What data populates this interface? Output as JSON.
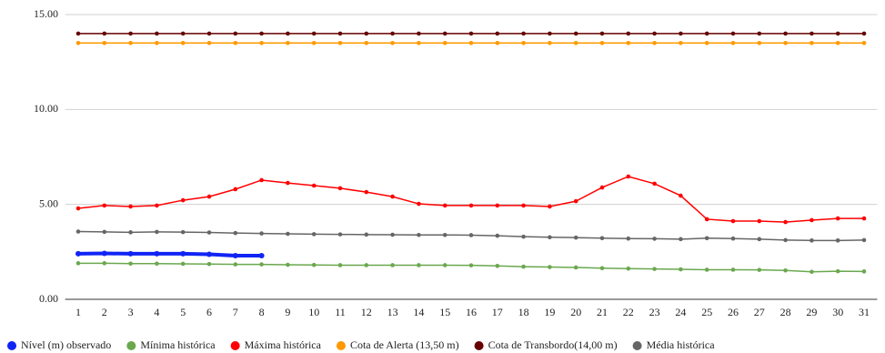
{
  "chart_data": {
    "type": "line",
    "categories": [
      "1",
      "2",
      "3",
      "4",
      "5",
      "6",
      "7",
      "8",
      "9",
      "10",
      "11",
      "12",
      "13",
      "14",
      "15",
      "16",
      "17",
      "18",
      "19",
      "20",
      "21",
      "22",
      "23",
      "24",
      "25",
      "26",
      "27",
      "28",
      "29",
      "30",
      "31"
    ],
    "series": [
      {
        "name": "Nível (m) observado",
        "color": "#1024f5",
        "values": [
          2.4,
          2.42,
          2.4,
          2.4,
          2.4,
          2.37,
          2.3,
          2.3,
          null,
          null,
          null,
          null,
          null,
          null,
          null,
          null,
          null,
          null,
          null,
          null,
          null,
          null,
          null,
          null,
          null,
          null,
          null,
          null,
          null,
          null,
          null
        ]
      },
      {
        "name": "Mínima histórica",
        "color": "#6aa84f",
        "values": [
          1.9,
          1.9,
          1.88,
          1.88,
          1.87,
          1.86,
          1.84,
          1.84,
          1.82,
          1.81,
          1.8,
          1.8,
          1.8,
          1.8,
          1.8,
          1.79,
          1.76,
          1.72,
          1.7,
          1.68,
          1.64,
          1.62,
          1.6,
          1.58,
          1.56,
          1.56,
          1.55,
          1.52,
          1.45,
          1.48,
          1.47
        ]
      },
      {
        "name": "Máxima histórica",
        "color": "#ff0000",
        "values": [
          4.79,
          4.94,
          4.89,
          4.94,
          5.22,
          5.41,
          5.8,
          6.28,
          6.13,
          5.99,
          5.85,
          5.65,
          5.41,
          5.03,
          4.94,
          4.94,
          4.94,
          4.94,
          4.89,
          5.17,
          5.89,
          6.47,
          6.09,
          5.46,
          4.22,
          4.12,
          4.12,
          4.07,
          4.17,
          4.26,
          4.26
        ]
      },
      {
        "name": "Cota de Alerta (13,50 m)",
        "color": "#ff9900",
        "values": [
          13.5,
          13.5,
          13.5,
          13.5,
          13.5,
          13.5,
          13.5,
          13.5,
          13.5,
          13.5,
          13.5,
          13.5,
          13.5,
          13.5,
          13.5,
          13.5,
          13.5,
          13.5,
          13.5,
          13.5,
          13.5,
          13.5,
          13.5,
          13.5,
          13.5,
          13.5,
          13.5,
          13.5,
          13.5,
          13.5,
          13.5
        ]
      },
      {
        "name": "Cota de Transbordo(14,00 m)",
        "color": "#660000",
        "values": [
          14,
          14,
          14,
          14,
          14,
          14,
          14,
          14,
          14,
          14,
          14,
          14,
          14,
          14,
          14,
          14,
          14,
          14,
          14,
          14,
          14,
          14,
          14,
          14,
          14,
          14,
          14,
          14,
          14,
          14,
          14
        ]
      },
      {
        "name": "Média histórica",
        "color": "#666666",
        "values": [
          3.57,
          3.55,
          3.53,
          3.55,
          3.54,
          3.52,
          3.49,
          3.47,
          3.45,
          3.43,
          3.42,
          3.41,
          3.4,
          3.39,
          3.39,
          3.38,
          3.35,
          3.3,
          3.27,
          3.25,
          3.22,
          3.2,
          3.19,
          3.17,
          3.22,
          3.2,
          3.17,
          3.12,
          3.1,
          3.1,
          3.12
        ]
      }
    ],
    "ylim": [
      0,
      15
    ],
    "yticks": [
      {
        "value": 0,
        "label": "0.00"
      },
      {
        "value": 5,
        "label": "5.00"
      },
      {
        "value": 10,
        "label": "10.00"
      },
      {
        "value": 15,
        "label": "15.00"
      }
    ],
    "grid": true,
    "legend": "bottom"
  }
}
